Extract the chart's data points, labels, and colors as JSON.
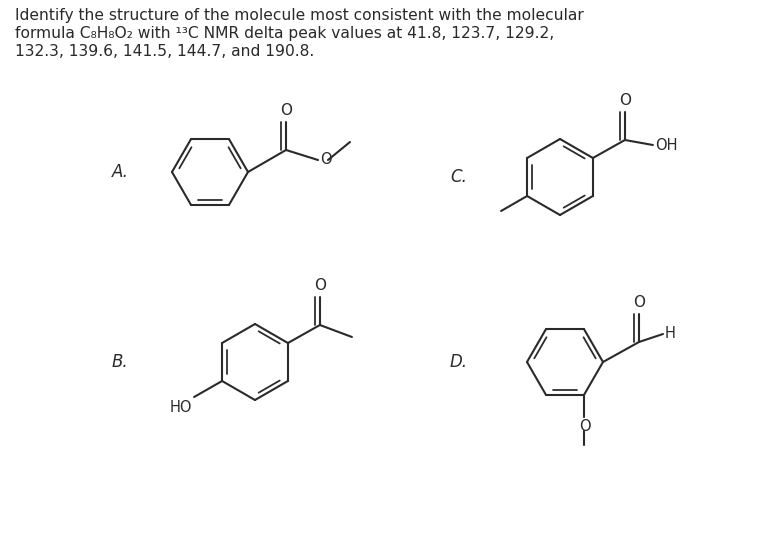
{
  "title_line1": "Identify the structure of the molecule most consistent with the molecular",
  "title_line2": "formula C₈H₈O₂ with ¹³C NMR delta peak values at 41.8, 123.7, 129.2,",
  "title_line3": "132.3, 139.6, 141.5, 144.7, and 190.8.",
  "bg_color": "#ffffff",
  "line_color": "#2a2a2a",
  "label_fontsize": 12,
  "text_fontsize": 11.2,
  "lw": 1.5,
  "ring_r": 38
}
